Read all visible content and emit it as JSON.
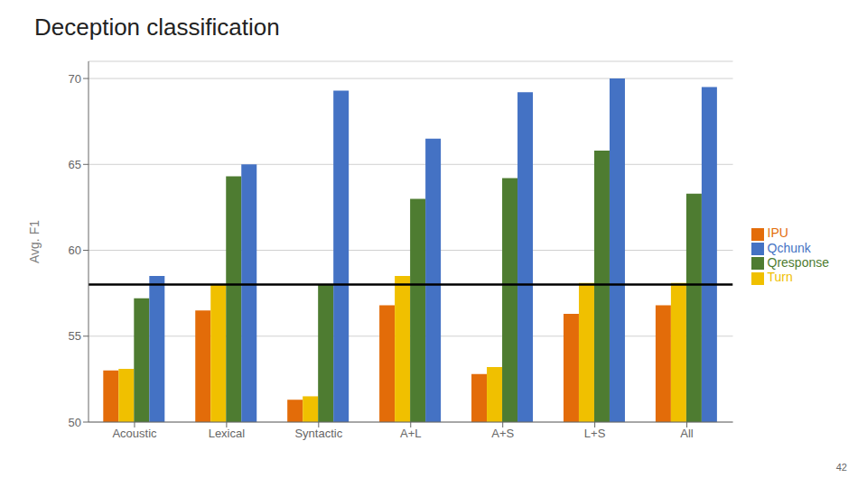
{
  "chart_data": {
    "type": "bar",
    "title": "Deception classification",
    "ylabel": "Avg. F1",
    "categories": [
      "Acoustic",
      "Lexical",
      "Syntactic",
      "A+L",
      "A+S",
      "L+S",
      "All"
    ],
    "series": [
      {
        "name": "IPU",
        "color": "#E36C09",
        "values": [
          53.0,
          56.5,
          51.3,
          56.8,
          52.8,
          56.3,
          56.8
        ]
      },
      {
        "name": "Turn",
        "color": "#F0C000",
        "values": [
          53.1,
          58.0,
          51.5,
          58.5,
          53.2,
          58.1,
          58.1
        ]
      },
      {
        "name": "Qresponse",
        "color": "#4E7C31",
        "values": [
          57.2,
          64.3,
          58.0,
          63.0,
          64.2,
          65.8,
          63.3
        ]
      },
      {
        "name": "Qchunk",
        "color": "#4472C4",
        "values": [
          58.5,
          65.0,
          69.3,
          66.5,
          69.2,
          70.0,
          69.5
        ]
      }
    ],
    "hline": 58.0,
    "ylim": [
      50,
      71
    ],
    "yticks": [
      50,
      55,
      60,
      65,
      70
    ],
    "grid": true,
    "legend": "right",
    "annotations": [
      "42"
    ]
  }
}
